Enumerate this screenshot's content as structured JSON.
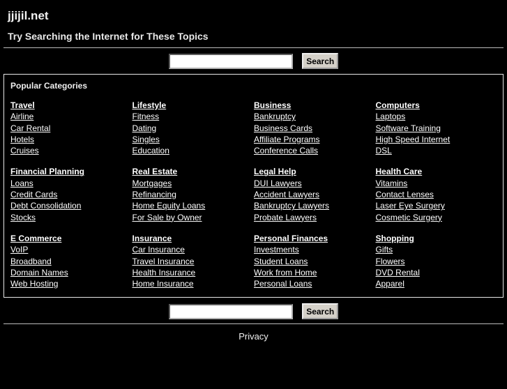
{
  "header": {
    "title": "jjijil.net",
    "subtitle": "Try Searching the Internet for These Topics"
  },
  "search": {
    "value": "",
    "button_label": "Search"
  },
  "categories_section": {
    "title": "Popular Categories",
    "groups": [
      {
        "heading": "Travel",
        "links": [
          "Airline",
          "Car Rental",
          "Hotels",
          "Cruises"
        ]
      },
      {
        "heading": "Lifestyle",
        "links": [
          "Fitness",
          "Dating",
          "Singles",
          "Education"
        ]
      },
      {
        "heading": "Business",
        "links": [
          "Bankruptcy",
          "Business Cards",
          "Affiliate Programs",
          "Conference Calls"
        ]
      },
      {
        "heading": "Computers",
        "links": [
          "Laptops",
          "Software Training",
          "High Speed Internet",
          "DSL"
        ]
      },
      {
        "heading": "Financial Planning",
        "links": [
          "Loans",
          "Credit Cards",
          "Debt Consolidation",
          "Stocks"
        ]
      },
      {
        "heading": "Real Estate",
        "links": [
          "Mortgages",
          "Refinancing",
          "Home Equity Loans",
          "For Sale by Owner"
        ]
      },
      {
        "heading": "Legal Help",
        "links": [
          "DUI Lawyers",
          "Accident Lawyers",
          "Bankruptcy Lawyers",
          "Probate Lawyers"
        ]
      },
      {
        "heading": "Health Care",
        "links": [
          "Vitamins",
          "Contact Lenses",
          "Laser Eye Surgery",
          "Cosmetic Surgery"
        ]
      },
      {
        "heading": "E Commerce",
        "links": [
          "VoIP",
          "Broadband",
          "Domain Names",
          "Web Hosting"
        ]
      },
      {
        "heading": "Insurance",
        "links": [
          "Car Insurance",
          "Travel Insurance",
          "Health Insurance",
          "Home Insurance"
        ]
      },
      {
        "heading": "Personal Finances",
        "links": [
          "Investments",
          "Student Loans",
          "Work from Home",
          "Personal Loans"
        ]
      },
      {
        "heading": "Shopping",
        "links": [
          "Gifts",
          "Flowers",
          "DVD Rental",
          "Apparel"
        ]
      }
    ]
  },
  "footer": {
    "privacy_label": "Privacy"
  },
  "colors": {
    "background": "#000000",
    "text": "#ffffff",
    "link": "#ffffff",
    "box_border": "#e8e8e8",
    "divider": "#bdbdbd",
    "button_face": "#d4d0c8",
    "button_text": "#000000",
    "input_background": "#ffffff"
  }
}
